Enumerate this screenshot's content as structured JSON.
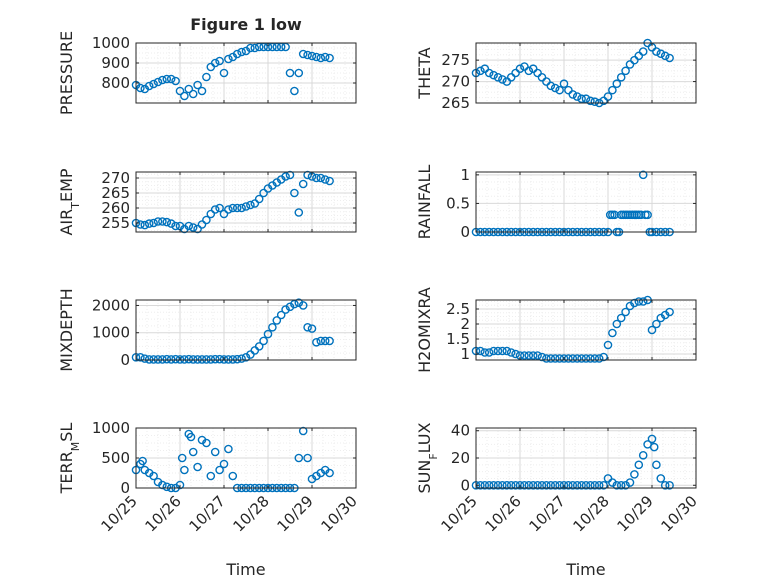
{
  "figure": {
    "title": "Figure 1 low",
    "marker_color": "#0072BD",
    "xtick_labels": [
      "10/25",
      "10/26",
      "10/27",
      "10/28",
      "10/29",
      "10/30"
    ],
    "xlabel": "Time"
  },
  "chart_data": [
    {
      "type": "scatter",
      "title": "Figure 1 low",
      "ylabel": "PRESSURE",
      "xlim": [
        0,
        5
      ],
      "ylim": [
        700,
        1000
      ],
      "yticks": [
        800,
        900,
        1000
      ],
      "grid": true,
      "x": [
        0.0,
        0.1,
        0.2,
        0.3,
        0.4,
        0.5,
        0.6,
        0.7,
        0.8,
        0.9,
        1.0,
        1.1,
        1.2,
        1.3,
        1.4,
        1.5,
        1.6,
        1.7,
        1.8,
        1.9,
        2.0,
        2.1,
        2.2,
        2.3,
        2.4,
        2.5,
        2.6,
        2.7,
        2.8,
        2.9,
        3.0,
        3.1,
        3.2,
        3.3,
        3.4,
        3.5,
        3.6,
        3.7,
        3.8,
        3.9,
        4.0,
        4.1,
        4.2,
        4.3,
        4.4
      ],
      "y": [
        790,
        775,
        770,
        785,
        795,
        805,
        815,
        820,
        820,
        810,
        760,
        735,
        770,
        745,
        790,
        760,
        830,
        880,
        900,
        910,
        850,
        920,
        930,
        945,
        955,
        960,
        975,
        975,
        980,
        980,
        980,
        980,
        980,
        980,
        980,
        850,
        760,
        850,
        945,
        940,
        935,
        930,
        925,
        930,
        925
      ]
    },
    {
      "type": "scatter",
      "ylabel": "THETA",
      "xlim": [
        0,
        5
      ],
      "ylim": [
        265,
        279
      ],
      "yticks": [
        265,
        270,
        275
      ],
      "grid": true,
      "x": [
        0.0,
        0.1,
        0.2,
        0.3,
        0.4,
        0.5,
        0.6,
        0.7,
        0.8,
        0.9,
        1.0,
        1.1,
        1.2,
        1.3,
        1.4,
        1.5,
        1.6,
        1.7,
        1.8,
        1.9,
        2.0,
        2.1,
        2.2,
        2.3,
        2.4,
        2.5,
        2.6,
        2.7,
        2.8,
        2.9,
        3.0,
        3.1,
        3.2,
        3.3,
        3.4,
        3.5,
        3.6,
        3.7,
        3.8,
        3.9,
        4.0,
        4.1,
        4.2,
        4.3,
        4.4
      ],
      "y": [
        272,
        272.5,
        273,
        272,
        271.5,
        271,
        270.5,
        270,
        271,
        272,
        273,
        273.5,
        272.5,
        273,
        272,
        271,
        270,
        269,
        268.5,
        268,
        269.5,
        268,
        267,
        266.5,
        266,
        266,
        265.5,
        265.3,
        265,
        265.5,
        266.5,
        268,
        269.5,
        271,
        272.5,
        274,
        275,
        276,
        277,
        279,
        278,
        277,
        276.5,
        276,
        275.5
      ]
    },
    {
      "type": "scatter",
      "ylabel": "AIR_TEMP",
      "xlim": [
        0,
        5
      ],
      "ylim": [
        252,
        272
      ],
      "yticks": [
        255,
        260,
        265,
        270
      ],
      "grid": true,
      "x": [
        0.0,
        0.1,
        0.2,
        0.3,
        0.4,
        0.5,
        0.6,
        0.7,
        0.8,
        0.9,
        1.0,
        1.1,
        1.2,
        1.3,
        1.4,
        1.5,
        1.6,
        1.7,
        1.8,
        1.9,
        2.0,
        2.1,
        2.2,
        2.3,
        2.4,
        2.5,
        2.6,
        2.7,
        2.8,
        2.9,
        3.0,
        3.1,
        3.2,
        3.3,
        3.4,
        3.5,
        3.6,
        3.7,
        3.8,
        3.9,
        4.0,
        4.1,
        4.2,
        4.3,
        4.4
      ],
      "y": [
        255,
        254.5,
        254.3,
        254.8,
        255,
        255.5,
        255.5,
        255.3,
        254.8,
        254,
        254,
        253,
        254,
        253.5,
        253,
        254.5,
        256,
        258,
        259.5,
        260,
        258,
        259.5,
        260,
        260,
        260,
        260.5,
        261,
        261.5,
        263,
        265,
        266.5,
        267.5,
        268.5,
        269.5,
        270.5,
        271,
        265,
        258.5,
        268,
        271,
        270.5,
        270,
        270,
        269.5,
        269
      ]
    },
    {
      "type": "scatter",
      "ylabel": "RAINFALL",
      "xlim": [
        0,
        5
      ],
      "ylim": [
        0,
        1.05
      ],
      "yticks": [
        0,
        0.5,
        1
      ],
      "grid": true,
      "x": [
        0.0,
        0.1,
        0.2,
        0.3,
        0.4,
        0.5,
        0.6,
        0.7,
        0.8,
        0.9,
        1.0,
        1.1,
        1.2,
        1.3,
        1.4,
        1.5,
        1.6,
        1.7,
        1.8,
        1.9,
        2.0,
        2.1,
        2.2,
        2.3,
        2.4,
        2.5,
        2.6,
        2.7,
        2.8,
        2.9,
        3.0,
        3.05,
        3.1,
        3.15,
        3.2,
        3.25,
        3.3,
        3.35,
        3.4,
        3.45,
        3.5,
        3.55,
        3.6,
        3.65,
        3.7,
        3.75,
        3.8,
        3.85,
        3.9,
        3.95,
        4.0,
        4.1,
        4.2,
        4.3,
        4.4
      ],
      "y": [
        0,
        0,
        0,
        0,
        0,
        0,
        0,
        0,
        0,
        0,
        0,
        0,
        0,
        0,
        0,
        0,
        0,
        0,
        0,
        0,
        0,
        0,
        0,
        0,
        0,
        0,
        0,
        0,
        0,
        0,
        0,
        0.3,
        0.3,
        0.3,
        0,
        0,
        0.3,
        0.3,
        0.3,
        0.3,
        0.3,
        0.3,
        0.3,
        0.3,
        0.3,
        0.3,
        1,
        0.3,
        0.3,
        0,
        0,
        0,
        0,
        0,
        0
      ]
    },
    {
      "type": "scatter",
      "ylabel": "MIXDEPTH",
      "xlim": [
        0,
        5
      ],
      "ylim": [
        0,
        2200
      ],
      "yticks": [
        0,
        1000,
        2000
      ],
      "grid": true,
      "x": [
        0.0,
        0.1,
        0.2,
        0.3,
        0.4,
        0.5,
        0.6,
        0.7,
        0.8,
        0.9,
        1.0,
        1.1,
        1.2,
        1.3,
        1.4,
        1.5,
        1.6,
        1.7,
        1.8,
        1.9,
        2.0,
        2.1,
        2.2,
        2.3,
        2.4,
        2.5,
        2.6,
        2.7,
        2.8,
        2.9,
        3.0,
        3.1,
        3.2,
        3.3,
        3.4,
        3.5,
        3.6,
        3.7,
        3.8,
        3.9,
        4.0,
        4.1,
        4.2,
        4.3,
        4.4
      ],
      "y": [
        100,
        100,
        50,
        20,
        20,
        20,
        20,
        30,
        20,
        30,
        20,
        20,
        30,
        20,
        20,
        20,
        20,
        20,
        30,
        30,
        20,
        20,
        20,
        30,
        50,
        100,
        200,
        350,
        500,
        700,
        950,
        1200,
        1450,
        1650,
        1850,
        1950,
        2050,
        2100,
        2000,
        1200,
        1150,
        650,
        700,
        700,
        700
      ]
    },
    {
      "type": "scatter",
      "ylabel": "H2OMIXRA",
      "xlim": [
        0,
        5
      ],
      "ylim": [
        0.8,
        2.8
      ],
      "yticks": [
        1,
        1.5,
        2,
        2.5
      ],
      "grid": true,
      "x": [
        0.0,
        0.1,
        0.2,
        0.3,
        0.4,
        0.5,
        0.6,
        0.7,
        0.8,
        0.9,
        1.0,
        1.1,
        1.2,
        1.3,
        1.4,
        1.5,
        1.6,
        1.7,
        1.8,
        1.9,
        2.0,
        2.1,
        2.2,
        2.3,
        2.4,
        2.5,
        2.6,
        2.7,
        2.8,
        2.9,
        3.0,
        3.1,
        3.2,
        3.3,
        3.4,
        3.5,
        3.6,
        3.7,
        3.8,
        3.9,
        4.0,
        4.1,
        4.2,
        4.3,
        4.4
      ],
      "y": [
        1.1,
        1.1,
        1.05,
        1.05,
        1.1,
        1.1,
        1.1,
        1.1,
        1.05,
        1.0,
        0.95,
        0.95,
        0.95,
        0.95,
        0.95,
        0.9,
        0.85,
        0.85,
        0.85,
        0.85,
        0.85,
        0.85,
        0.85,
        0.85,
        0.85,
        0.85,
        0.85,
        0.85,
        0.85,
        0.9,
        1.3,
        1.7,
        2.0,
        2.2,
        2.4,
        2.6,
        2.7,
        2.75,
        2.75,
        2.8,
        1.8,
        2.0,
        2.2,
        2.3,
        2.4
      ]
    },
    {
      "type": "scatter",
      "ylabel": "TERR_MSL",
      "xlim": [
        0,
        5
      ],
      "ylim": [
        0,
        1000
      ],
      "yticks": [
        0,
        500,
        1000
      ],
      "grid": true,
      "x": [
        0.0,
        0.1,
        0.15,
        0.2,
        0.3,
        0.4,
        0.5,
        0.6,
        0.7,
        0.8,
        0.9,
        1.0,
        1.05,
        1.1,
        1.2,
        1.25,
        1.3,
        1.4,
        1.5,
        1.6,
        1.7,
        1.8,
        1.9,
        2.0,
        2.1,
        2.2,
        2.3,
        2.4,
        2.5,
        2.6,
        2.7,
        2.8,
        2.9,
        3.0,
        3.1,
        3.2,
        3.3,
        3.4,
        3.5,
        3.6,
        3.7,
        3.8,
        3.9,
        4.0,
        4.1,
        4.2,
        4.3,
        4.4
      ],
      "y": [
        300,
        400,
        450,
        300,
        250,
        200,
        100,
        50,
        20,
        0,
        0,
        50,
        500,
        300,
        900,
        850,
        600,
        350,
        800,
        750,
        200,
        600,
        300,
        400,
        650,
        200,
        0,
        0,
        0,
        0,
        0,
        0,
        0,
        0,
        0,
        0,
        0,
        0,
        0,
        0,
        500,
        950,
        500,
        150,
        200,
        250,
        300,
        250
      ]
    },
    {
      "type": "scatter",
      "ylabel": "SUN_FLUX",
      "xlim": [
        0,
        5
      ],
      "ylim": [
        -2,
        42
      ],
      "yticks": [
        0,
        20,
        40
      ],
      "grid": true,
      "x": [
        0.0,
        0.1,
        0.2,
        0.3,
        0.4,
        0.5,
        0.6,
        0.7,
        0.8,
        0.9,
        1.0,
        1.1,
        1.2,
        1.3,
        1.4,
        1.5,
        1.6,
        1.7,
        1.8,
        1.9,
        2.0,
        2.1,
        2.2,
        2.3,
        2.4,
        2.5,
        2.6,
        2.7,
        2.8,
        2.9,
        3.0,
        3.1,
        3.2,
        3.3,
        3.4,
        3.5,
        3.6,
        3.7,
        3.8,
        3.9,
        4.0,
        4.05,
        4.1,
        4.2,
        4.3,
        4.4
      ],
      "y": [
        0,
        0,
        0,
        0,
        0,
        0,
        0,
        0,
        0,
        0,
        0,
        0,
        0,
        0,
        0,
        0,
        0,
        0,
        0,
        0,
        0,
        0,
        0,
        0,
        0,
        0,
        0,
        0,
        0,
        0,
        5,
        2,
        0,
        0,
        0,
        2,
        8,
        15,
        22,
        30,
        34,
        28,
        15,
        5,
        0,
        0
      ]
    }
  ]
}
